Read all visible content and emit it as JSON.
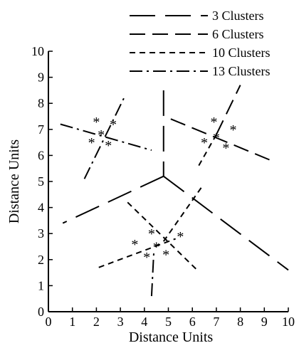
{
  "chart_data": {
    "type": "scatter",
    "title": "",
    "xlabel": "Distance Units",
    "ylabel": "Distance Units",
    "xlim": [
      0,
      10
    ],
    "ylim": [
      0,
      10
    ],
    "x_ticks": [
      "0",
      "1",
      "2",
      "3",
      "4",
      "5",
      "6",
      "7",
      "8",
      "9",
      "10"
    ],
    "y_ticks": [
      "0",
      "1",
      "2",
      "3",
      "4",
      "5",
      "6",
      "7",
      "8",
      "9",
      "10"
    ],
    "grid": false,
    "legend_position": "top-right",
    "point_marker": "*",
    "points": [
      {
        "x": 2.0,
        "y": 7.3
      },
      {
        "x": 2.7,
        "y": 7.2
      },
      {
        "x": 1.8,
        "y": 6.5
      },
      {
        "x": 2.5,
        "y": 6.4
      },
      {
        "x": 2.2,
        "y": 6.8
      },
      {
        "x": 6.9,
        "y": 7.3
      },
      {
        "x": 7.7,
        "y": 7.0
      },
      {
        "x": 6.5,
        "y": 6.5
      },
      {
        "x": 7.4,
        "y": 6.3
      },
      {
        "x": 7.0,
        "y": 6.7
      },
      {
        "x": 4.3,
        "y": 3.0
      },
      {
        "x": 5.5,
        "y": 2.9
      },
      {
        "x": 3.6,
        "y": 2.6
      },
      {
        "x": 4.1,
        "y": 2.1
      },
      {
        "x": 4.9,
        "y": 2.2
      },
      {
        "x": 4.5,
        "y": 2.5
      }
    ],
    "series": [
      {
        "name": "3 Clusters",
        "dash": "long",
        "segments": [
          [
            [
              4.8,
              8.5
            ],
            [
              4.8,
              5.2
            ]
          ],
          [
            [
              4.8,
              5.2
            ],
            [
              0.6,
              3.4
            ]
          ],
          [
            [
              4.8,
              5.2
            ],
            [
              10.0,
              1.6
            ]
          ]
        ]
      },
      {
        "name": "6 Clusters",
        "dash": "medium",
        "segments": [
          [
            [
              5.1,
              7.4
            ],
            [
              9.3,
              5.8
            ]
          ],
          [
            [
              7.0,
              6.8
            ],
            [
              8.0,
              8.7
            ]
          ]
        ]
      },
      {
        "name": "10 Clusters",
        "dash": "short",
        "segments": [
          [
            [
              3.3,
              4.2
            ],
            [
              6.2,
              1.6
            ]
          ],
          [
            [
              2.1,
              1.7
            ],
            [
              5.3,
              2.8
            ]
          ],
          [
            [
              4.8,
              2.7
            ],
            [
              6.4,
              4.8
            ]
          ],
          [
            [
              7.0,
              6.8
            ],
            [
              6.2,
              5.5
            ]
          ]
        ]
      },
      {
        "name": "13 Clusters",
        "dash": "dashdot",
        "segments": [
          [
            [
              0.5,
              7.2
            ],
            [
              4.3,
              6.2
            ]
          ],
          [
            [
              1.5,
              5.1
            ],
            [
              3.2,
              8.3
            ]
          ],
          [
            [
              4.3,
              0.6
            ],
            [
              4.4,
              2.4
            ]
          ]
        ]
      }
    ]
  }
}
